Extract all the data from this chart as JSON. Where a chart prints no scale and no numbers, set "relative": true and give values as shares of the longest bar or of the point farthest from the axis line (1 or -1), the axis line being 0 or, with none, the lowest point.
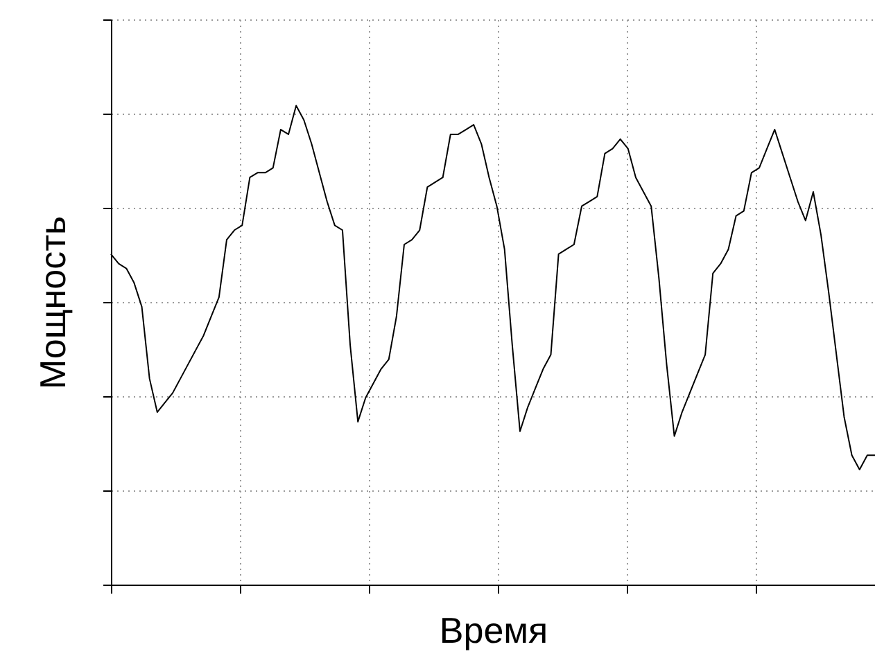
{
  "chart_data": {
    "type": "line",
    "relative": true,
    "xlabel": "Время",
    "ylabel": "Мощность",
    "grid": true,
    "tick_labels": false,
    "categories": [
      null,
      null,
      null,
      null,
      null,
      null,
      null,
      null,
      null,
      null,
      null,
      null,
      null,
      null,
      null,
      null,
      null,
      null,
      null,
      null,
      null,
      null,
      null,
      null,
      null,
      null,
      null,
      null,
      null,
      null,
      null,
      null,
      null,
      null,
      null,
      null,
      null,
      null,
      null,
      null,
      null,
      null,
      null,
      null,
      null,
      null,
      null,
      null,
      null,
      null,
      null,
      null,
      null,
      null,
      null,
      null,
      null,
      null,
      null,
      null,
      null,
      null,
      null,
      null,
      null,
      null,
      null,
      null,
      null,
      null,
      null,
      null,
      null,
      null,
      null,
      null,
      null,
      null,
      null,
      null,
      null,
      null,
      null,
      null,
      null,
      null,
      null,
      null,
      null,
      null,
      null,
      null,
      null,
      null,
      null,
      null,
      null,
      null,
      null,
      null
    ],
    "series": [
      {
        "color": "#000000",
        "values": [
          0.69,
          0.67,
          0.66,
          0.63,
          0.58,
          0.43,
          0.36,
          0.38,
          0.4,
          0.43,
          0.46,
          0.49,
          0.52,
          0.56,
          0.6,
          0.72,
          0.74,
          0.75,
          0.85,
          0.86,
          0.86,
          0.87,
          0.95,
          0.94,
          1.0,
          0.97,
          0.92,
          0.86,
          0.8,
          0.75,
          0.74,
          0.5,
          0.34,
          0.39,
          0.42,
          0.45,
          0.47,
          0.56,
          0.71,
          0.72,
          0.74,
          0.83,
          0.84,
          0.85,
          0.94,
          0.94,
          0.95,
          0.96,
          0.92,
          0.85,
          0.79,
          0.7,
          0.5,
          0.32,
          0.37,
          0.41,
          0.45,
          0.48,
          0.69,
          0.7,
          0.71,
          0.79,
          0.8,
          0.81,
          0.9,
          0.91,
          0.93,
          0.91,
          0.85,
          0.82,
          0.79,
          0.64,
          0.46,
          0.31,
          0.36,
          0.4,
          0.44,
          0.48,
          0.65,
          0.67,
          0.7,
          0.77,
          0.78,
          0.86,
          0.87,
          0.91,
          0.95,
          0.9,
          0.85,
          0.8,
          0.76,
          0.82,
          0.73,
          0.61,
          0.48,
          0.35,
          0.27,
          0.24,
          0.27,
          0.27
        ]
      }
    ]
  }
}
